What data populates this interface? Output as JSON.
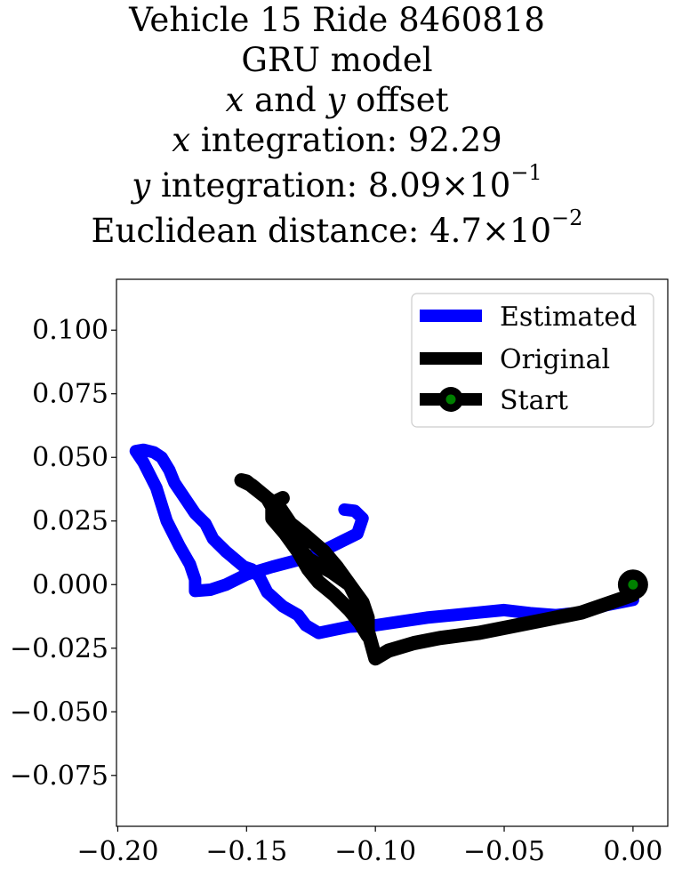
{
  "title": {
    "line1": "Vehicle 15 Ride 8460818",
    "line2": "GRU model",
    "line3_var_x": "x",
    "line3_and": " and ",
    "line3_var_y": "y",
    "line3_rest": " offset",
    "line4_var": "x",
    "line4_rest": " integration: 92.29",
    "line5_var": "y",
    "line5_rest": " integration: 8.09×10",
    "line5_exp": "−1",
    "line6_rest": "Euclidean distance: 4.7×10",
    "line6_exp": "−2"
  },
  "chart_data": {
    "type": "line",
    "xlim": [
      -0.2005,
      0.0135
    ],
    "ylim": [
      -0.095,
      0.12
    ],
    "xticks": [
      -0.2,
      -0.15,
      -0.1,
      -0.05,
      0.0
    ],
    "xtick_labels": [
      "−0.20",
      "−0.15",
      "−0.10",
      "−0.05",
      "0.00"
    ],
    "yticks": [
      0.1,
      0.075,
      0.05,
      0.025,
      0.0,
      -0.025,
      -0.05,
      -0.075
    ],
    "ytick_labels": [
      "0.100",
      "0.075",
      "0.050",
      "0.025",
      "0.000",
      "−0.025",
      "−0.050",
      "−0.075"
    ],
    "legend_position": "upper-right",
    "legend": [
      "Estimated",
      "Original",
      "Start"
    ],
    "series": [
      {
        "name": "Estimated",
        "color": "#0000ff",
        "points": [
          [
            0.0,
            -0.006
          ],
          [
            -0.01,
            -0.008
          ],
          [
            -0.02,
            -0.011
          ],
          [
            -0.03,
            -0.012
          ],
          [
            -0.04,
            -0.0112
          ],
          [
            -0.05,
            -0.01
          ],
          [
            -0.06,
            -0.011
          ],
          [
            -0.07,
            -0.012
          ],
          [
            -0.08,
            -0.013
          ],
          [
            -0.09,
            -0.0145
          ],
          [
            -0.1,
            -0.016
          ],
          [
            -0.11,
            -0.0165
          ],
          [
            -0.122,
            -0.019
          ],
          [
            -0.127,
            -0.016
          ],
          [
            -0.13,
            -0.012
          ],
          [
            -0.136,
            -0.0085
          ],
          [
            -0.142,
            -0.003
          ],
          [
            -0.145,
            0.003
          ],
          [
            -0.148,
            0.006
          ],
          [
            -0.151,
            0.007
          ],
          [
            -0.158,
            0.013
          ],
          [
            -0.163,
            0.018
          ],
          [
            -0.166,
            0.024
          ],
          [
            -0.17,
            0.028
          ],
          [
            -0.174,
            0.034
          ],
          [
            -0.178,
            0.04
          ],
          [
            -0.18,
            0.045
          ],
          [
            -0.183,
            0.05
          ],
          [
            -0.186,
            0.052
          ],
          [
            -0.19,
            0.053
          ],
          [
            -0.193,
            0.0525
          ],
          [
            -0.19,
            0.048
          ],
          [
            -0.185,
            0.038
          ],
          [
            -0.181,
            0.025
          ],
          [
            -0.176,
            0.015
          ],
          [
            -0.172,
            0.008
          ],
          [
            -0.17,
            0.002
          ],
          [
            -0.17,
            -0.0025
          ],
          [
            -0.164,
            -0.002
          ],
          [
            -0.158,
            0.0
          ],
          [
            -0.15,
            0.004
          ],
          [
            -0.14,
            0.007
          ],
          [
            -0.125,
            0.011
          ],
          [
            -0.115,
            0.016
          ],
          [
            -0.107,
            0.02
          ],
          [
            -0.105,
            0.026
          ],
          [
            -0.108,
            0.029
          ],
          [
            -0.112,
            0.0295
          ]
        ]
      },
      {
        "name": "Original",
        "color": "#000000",
        "points": [
          [
            0.0,
            -0.004
          ],
          [
            -0.02,
            -0.011
          ],
          [
            -0.04,
            -0.015
          ],
          [
            -0.06,
            -0.019
          ],
          [
            -0.075,
            -0.021
          ],
          [
            -0.085,
            -0.023
          ],
          [
            -0.095,
            -0.026
          ],
          [
            -0.1,
            -0.029
          ],
          [
            -0.103,
            -0.018
          ],
          [
            -0.106,
            -0.008
          ],
          [
            -0.11,
            0.0
          ],
          [
            -0.115,
            0.007
          ],
          [
            -0.12,
            0.013
          ],
          [
            -0.128,
            0.02
          ],
          [
            -0.133,
            0.024
          ],
          [
            -0.137,
            0.03
          ],
          [
            -0.142,
            0.034
          ],
          [
            -0.147,
            0.038
          ],
          [
            -0.15,
            0.0405
          ],
          [
            -0.152,
            0.041
          ],
          [
            -0.148,
            0.039
          ],
          [
            -0.142,
            0.034
          ],
          [
            -0.138,
            0.027
          ],
          [
            -0.132,
            0.018
          ],
          [
            -0.126,
            0.01
          ],
          [
            -0.117,
            0.005
          ],
          [
            -0.11,
            0.0
          ],
          [
            -0.105,
            -0.007
          ],
          [
            -0.103,
            -0.013
          ],
          [
            -0.103,
            -0.02
          ],
          [
            -0.106,
            -0.015
          ],
          [
            -0.11,
            -0.01
          ],
          [
            -0.116,
            -0.004
          ],
          [
            -0.122,
            0.001
          ],
          [
            -0.126,
            0.006
          ],
          [
            -0.13,
            0.013
          ],
          [
            -0.135,
            0.02
          ],
          [
            -0.14,
            0.026
          ],
          [
            -0.14,
            0.032
          ],
          [
            -0.136,
            0.034
          ]
        ]
      }
    ],
    "start_point": [
      0.0,
      0.0
    ]
  }
}
